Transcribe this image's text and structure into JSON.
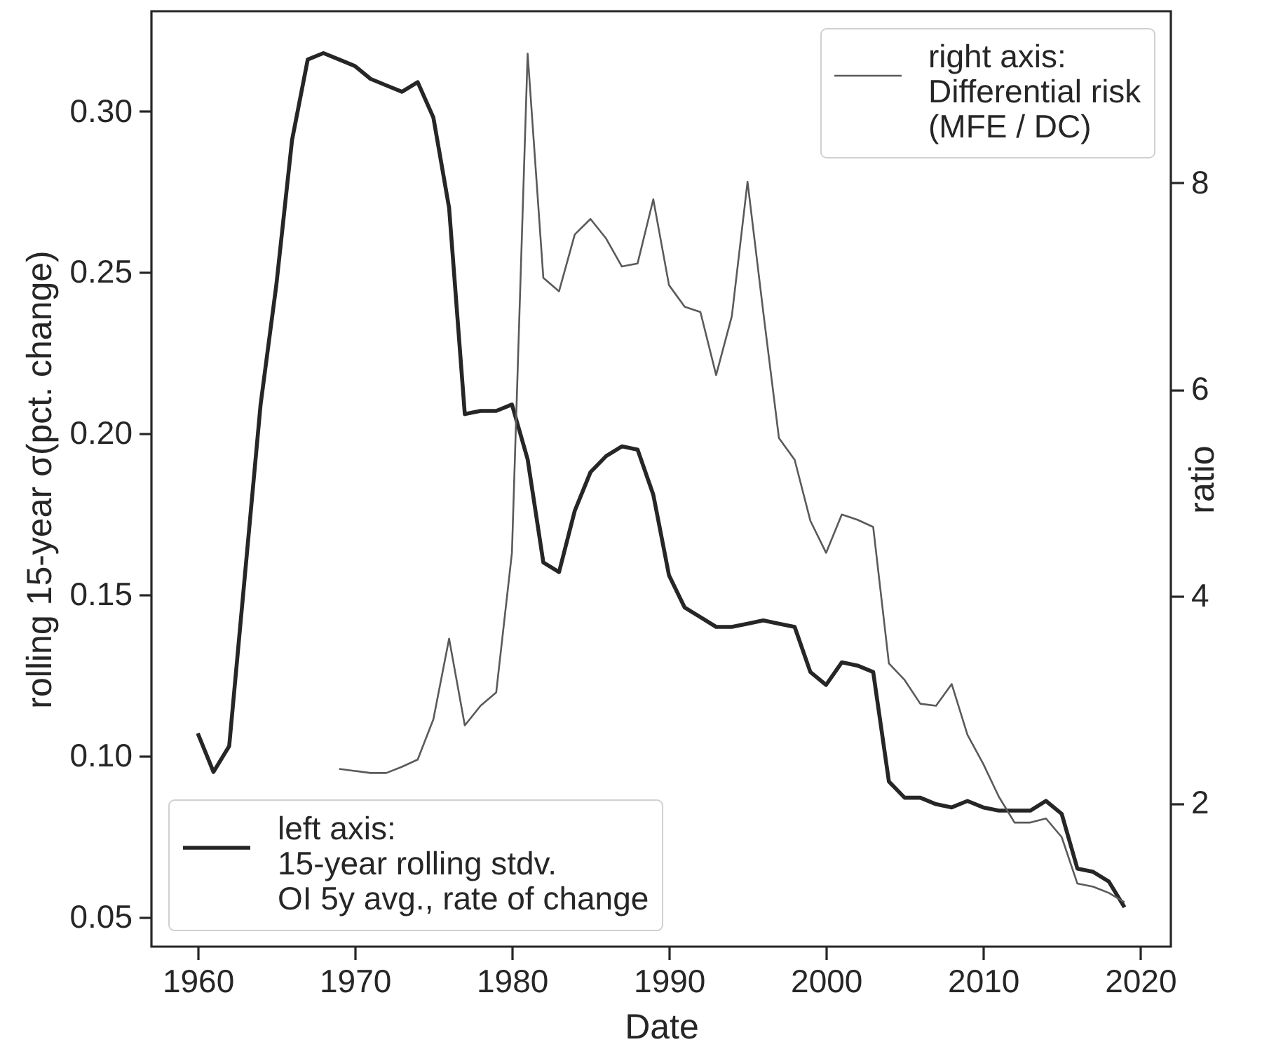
{
  "chart_data": {
    "type": "line",
    "xlabel": "Date",
    "ylabel": "rolling 15-year σ(pct. change)",
    "y2label": "ratio",
    "x": [
      1960,
      1961,
      1962,
      1963,
      1964,
      1965,
      1966,
      1967,
      1968,
      1969,
      1970,
      1971,
      1972,
      1973,
      1974,
      1975,
      1976,
      1977,
      1978,
      1979,
      1980,
      1981,
      1982,
      1983,
      1984,
      1985,
      1986,
      1987,
      1988,
      1989,
      1990,
      1991,
      1992,
      1993,
      1994,
      1995,
      1996,
      1997,
      1998,
      1999,
      2000,
      2001,
      2002,
      2003,
      2004,
      2005,
      2006,
      2007,
      2008,
      2009,
      2010,
      2011,
      2012,
      2013,
      2014,
      2015,
      2016,
      2017,
      2018,
      2019
    ],
    "series": [
      {
        "name": "left axis:\n15-year rolling stdv.\nOI 5y avg., rate of change",
        "color": "#262626",
        "values": [
          0.107,
          0.095,
          0.103,
          0.156,
          0.209,
          0.246,
          0.291,
          0.316,
          0.318,
          0.316,
          0.314,
          0.31,
          0.308,
          0.306,
          0.309,
          0.298,
          0.27,
          0.206,
          0.207,
          0.207,
          0.209,
          0.192,
          0.16,
          0.157,
          0.176,
          0.188,
          0.193,
          0.196,
          0.195,
          0.181,
          0.156,
          0.146,
          0.143,
          0.14,
          0.14,
          0.141,
          0.142,
          0.141,
          0.14,
          0.126,
          0.122,
          0.129,
          0.128,
          0.126,
          0.092,
          0.087,
          0.087,
          0.085,
          0.084,
          0.086,
          0.084,
          0.083,
          0.083,
          0.083,
          0.086,
          0.082,
          0.065,
          0.064,
          0.061,
          0.053
        ]
      },
      {
        "name": "right axis:\nDifferential risk\n(MFE / DC)",
        "color": "#5a5a5a",
        "axis": "y2",
        "values": [
          null,
          null,
          null,
          null,
          null,
          null,
          null,
          null,
          null,
          2.33,
          2.31,
          2.29,
          2.29,
          2.35,
          2.42,
          2.81,
          3.59,
          2.75,
          2.94,
          3.07,
          4.42,
          9.25,
          7.08,
          6.95,
          7.5,
          7.65,
          7.46,
          7.19,
          7.22,
          7.84,
          7.01,
          6.8,
          6.75,
          6.14,
          6.71,
          8.01,
          6.75,
          5.53,
          5.32,
          4.73,
          4.42,
          4.79,
          4.74,
          4.67,
          3.35,
          3.19,
          2.96,
          2.94,
          3.15,
          2.66,
          2.38,
          2.06,
          1.81,
          1.81,
          1.85,
          1.67,
          1.22,
          1.19,
          1.13,
          1.04
        ]
      }
    ],
    "legend": [
      "bottom left",
      "top right"
    ],
    "xlim": [
      1957.05,
      2021.95
    ],
    "xticks": [
      1960,
      1970,
      1980,
      1990,
      2000,
      2010,
      2020
    ],
    "ylim": [
      0.0408,
      0.331
    ],
    "yticks": [
      0.05,
      {
        "value": 0.1,
        "label": "0.10"
      },
      0.15,
      {
        "value": 0.2,
        "label": "0.20"
      },
      0.25,
      {
        "value": 0.3,
        "label": "0.30"
      }
    ],
    "y2lim": [
      0.61,
      9.66
    ],
    "y2ticks": [
      2,
      4,
      6,
      8
    ],
    "line_style": "solid"
  }
}
